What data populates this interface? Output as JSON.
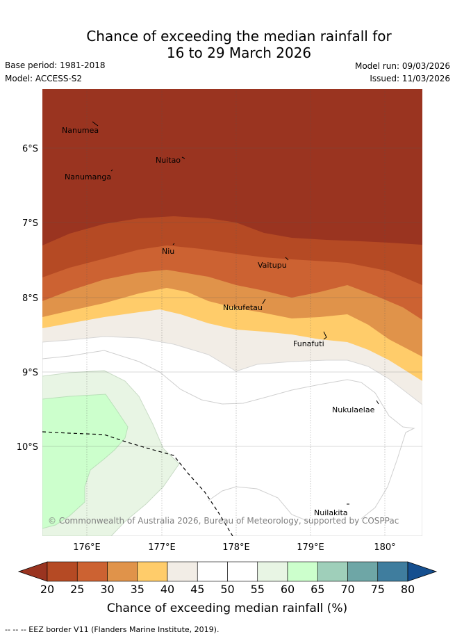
{
  "title": {
    "line1": "Chance of exceeding the median rainfall for",
    "line2": "16 to 29 March 2026"
  },
  "meta": {
    "base_period": "Base period: 1981-2018",
    "model": "Model: ACCESS-S2",
    "model_run": "Model run: 09/03/2026",
    "issued": "Issued: 11/03/2026"
  },
  "map": {
    "lat_labels": [
      "6°S",
      "7°S",
      "8°S",
      "9°S",
      "10°S"
    ],
    "lon_labels": [
      "176°E",
      "177°E",
      "178°E",
      "179°E",
      "180°"
    ],
    "places": [
      "Nanumea",
      "Nuitao",
      "Nanumanga",
      "Niu",
      "Vaitupu",
      "Nukufetau",
      "Funafuti",
      "Nukulaelae",
      "Nuilakita"
    ],
    "copyright": "© Commonwealth of Australia 2026, Bureau of Meteorology, supported by COSPPac"
  },
  "colorbar": {
    "ticks": [
      "20",
      "25",
      "30",
      "35",
      "40",
      "45",
      "50",
      "55",
      "60",
      "65",
      "70",
      "75",
      "80"
    ],
    "colors": [
      "#9a3420",
      "#b54a24",
      "#cc6232",
      "#e0934a",
      "#ffcc6a",
      "#f2ede6",
      "#ffffff",
      "#ffffff",
      "#e8f5e4",
      "#ccffcc",
      "#9fcfba",
      "#6ea6a6",
      "#3f7d9e",
      "#154f8f"
    ],
    "label": "Chance of exceeding median rainfall (%)"
  },
  "footer": "-- -- -- EEZ border V11 (Flanders Marine Institute, 2019)."
}
